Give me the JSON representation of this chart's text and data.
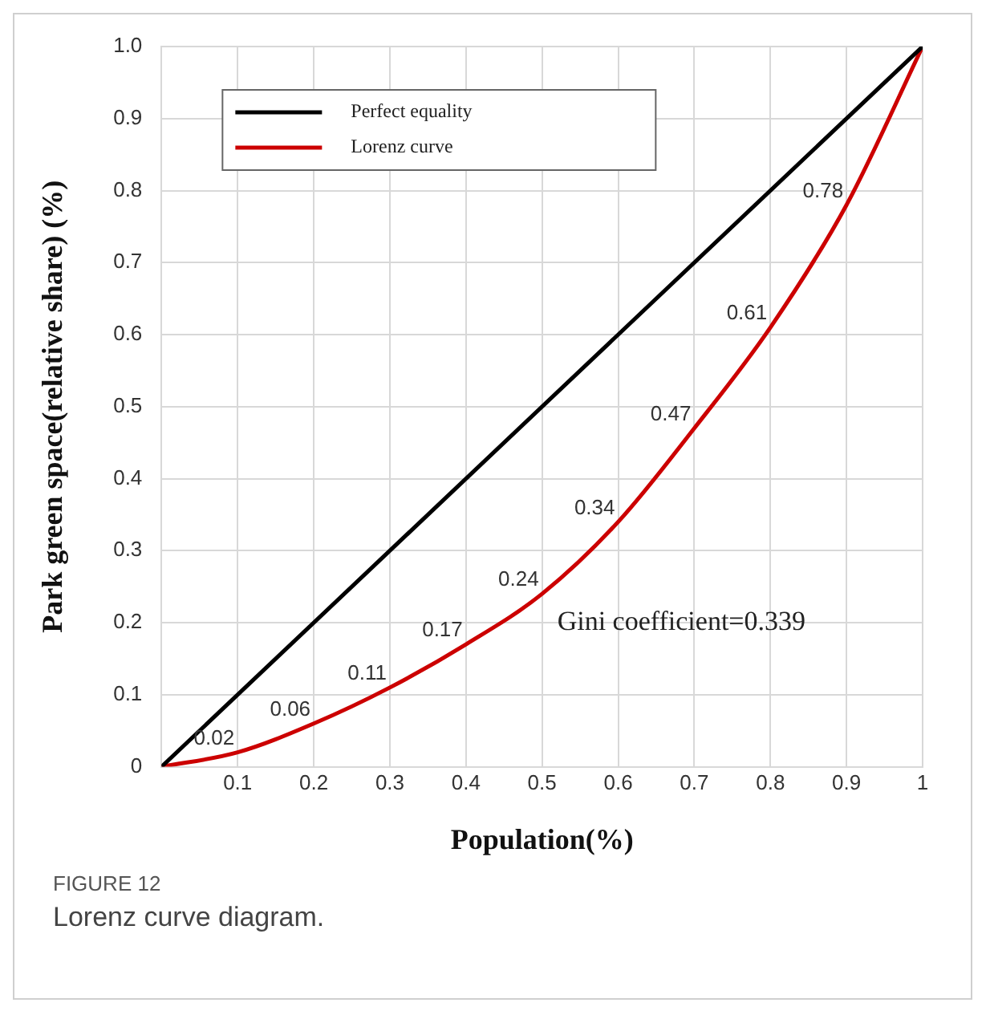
{
  "chart_data": {
    "type": "line",
    "xlabel": "Population(%)",
    "ylabel": "Park green space(relative share) (%)",
    "x": [
      0,
      0.1,
      0.2,
      0.3,
      0.4,
      0.5,
      0.6,
      0.7,
      0.8,
      0.9,
      1
    ],
    "series": [
      {
        "name": "Perfect equality",
        "color": "#000000",
        "x": [
          0,
          1
        ],
        "values": [
          0,
          1
        ]
      },
      {
        "name": "Lorenz curve",
        "color": "#cc0000",
        "values": [
          0,
          0.02,
          0.06,
          0.11,
          0.17,
          0.24,
          0.34,
          0.47,
          0.61,
          0.78,
          1
        ],
        "value_labels": [
          null,
          "0.02",
          "0.06",
          "0.11",
          "0.17",
          "0.24",
          "0.34",
          "0.47",
          "0.61",
          "0.78",
          null
        ]
      }
    ],
    "xlim": [
      0,
      1
    ],
    "xticks": [
      0.1,
      0.2,
      0.3,
      0.4,
      0.5,
      0.6,
      0.7,
      0.8,
      0.9,
      1
    ],
    "ylim": [
      0,
      1
    ],
    "yticks": [
      0,
      0.1,
      0.2,
      0.3,
      0.4,
      0.5,
      0.6,
      0.7,
      0.8,
      0.9,
      {
        "value": 1,
        "label": "1.0"
      }
    ],
    "grid": true,
    "legend": "top left",
    "marker": "none",
    "line_style": "solid",
    "annotations": [
      "Gini coefficient=0.339",
      "FIGURE 12",
      "Lorenz curve diagram."
    ]
  }
}
